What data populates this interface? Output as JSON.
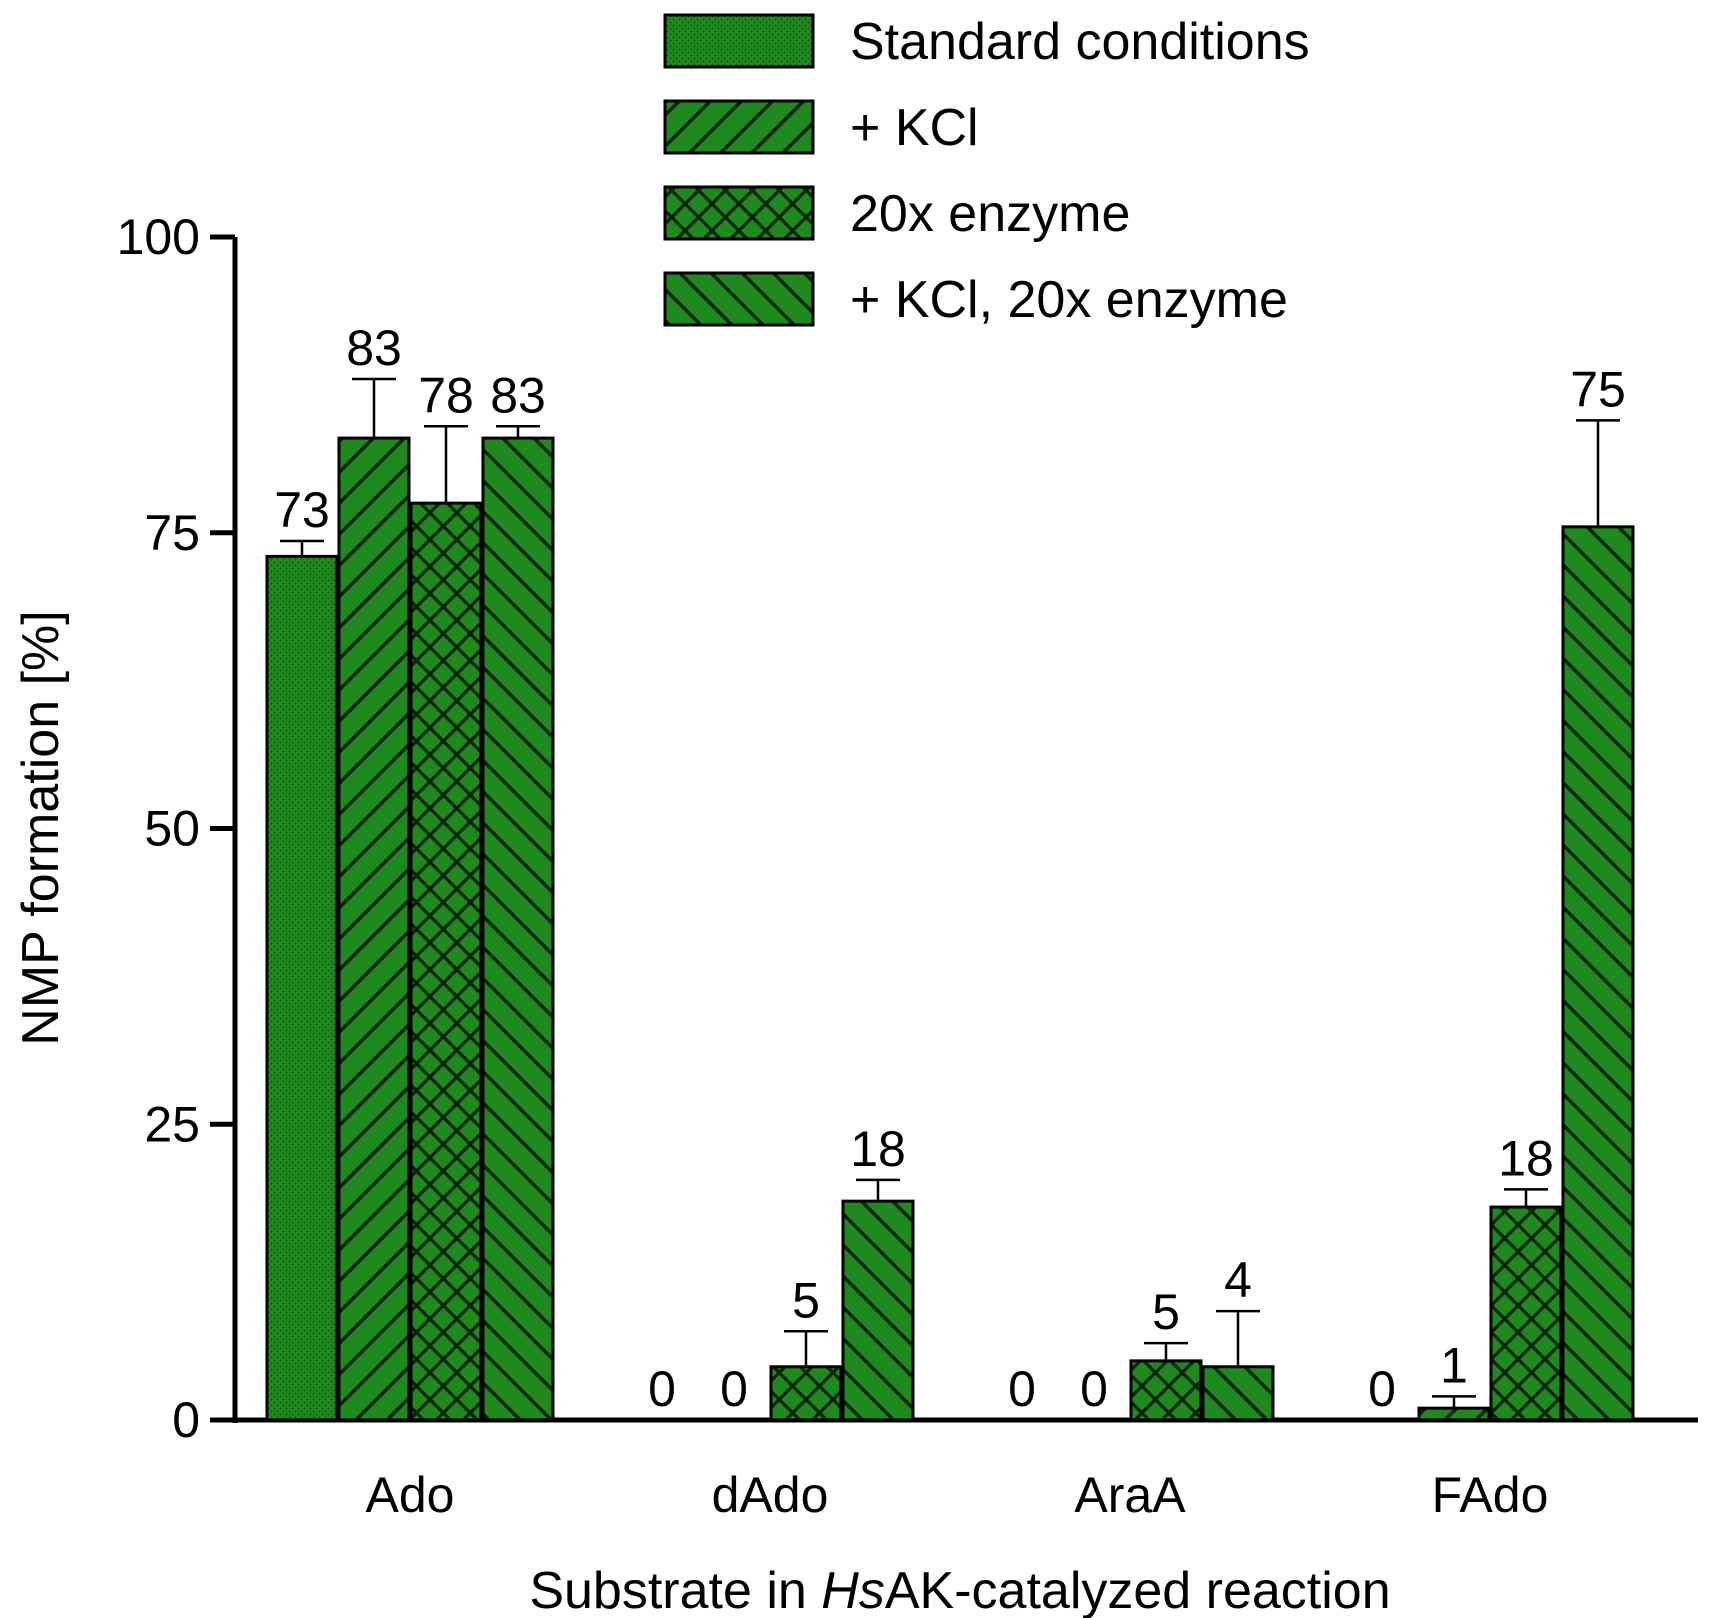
{
  "chart_data": {
    "type": "bar",
    "title": "",
    "xlabel_parts": [
      {
        "text": "Substrate in ",
        "italic": false
      },
      {
        "text": "Hs",
        "italic": true
      },
      {
        "text": "AK-catalyzed reaction",
        "italic": false
      }
    ],
    "ylabel": "NMP formation [%]",
    "ylim": [
      0,
      100
    ],
    "yticks": [
      0,
      25,
      50,
      75,
      100
    ],
    "categories": [
      "Ado",
      "dAdo",
      "AraA",
      "FAdo"
    ],
    "legend_position": "top-right",
    "series": [
      {
        "name": "Standard conditions",
        "pattern": "dots",
        "values": [
          73,
          0,
          0,
          0
        ],
        "errors": [
          1.3,
          0,
          0,
          0
        ],
        "labels": [
          "73",
          "0",
          "0",
          "0"
        ]
      },
      {
        "name": "+ KCl",
        "pattern": "diag-forward",
        "values": [
          83,
          0,
          0,
          1
        ],
        "errors": [
          5,
          0,
          0,
          1
        ],
        "labels": [
          "83",
          "0",
          "0",
          "1"
        ]
      },
      {
        "name": "20x enzyme",
        "pattern": "crosshatch",
        "values": [
          77.5,
          4.5,
          5,
          18
        ],
        "errors": [
          6.5,
          3,
          1.5,
          1.5
        ],
        "labels": [
          "78",
          "5",
          "5",
          "18"
        ]
      },
      {
        "name": "+ KCl, 20x enzyme",
        "pattern": "diag-back",
        "values": [
          83,
          18.5,
          4.5,
          75.5
        ],
        "errors": [
          1,
          1.8,
          4.7,
          9
        ],
        "labels": [
          "83",
          "18",
          "4",
          "75"
        ]
      }
    ],
    "colors": {
      "bar_fill": "#1e8a1e",
      "hatch": "#062306",
      "edge": "#000000"
    }
  }
}
